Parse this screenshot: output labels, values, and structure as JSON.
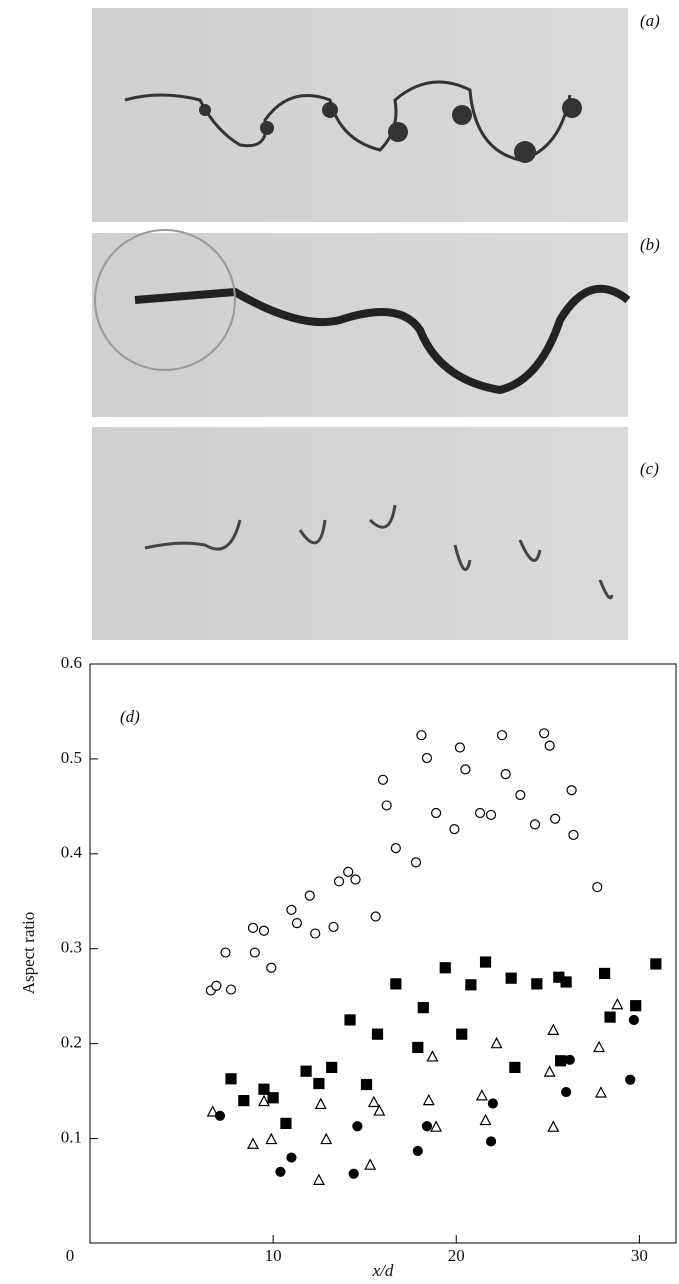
{
  "panels": [
    {
      "label": "(a)"
    },
    {
      "label": "(b)"
    },
    {
      "label": "(c)"
    }
  ],
  "chart_data": {
    "type": "scatter",
    "annotation": "(d)",
    "xlabel": "x/d",
    "ylabel": "Aspect ratio",
    "xlim": [
      0,
      32
    ],
    "ylim": [
      -0.01,
      0.6
    ],
    "xticks": [
      0,
      10,
      20,
      30
    ],
    "yticks": [
      0.1,
      0.2,
      0.3,
      0.4,
      0.5,
      0.6
    ],
    "series": [
      {
        "marker": "circle",
        "filled": false,
        "color": "#000000",
        "x": [
          6.6,
          6.9,
          7.4,
          7.7,
          8.9,
          9.0,
          9.5,
          9.9,
          11.0,
          11.3,
          12.0,
          12.3,
          13.3,
          13.6,
          14.1,
          14.5,
          15.6,
          16.0,
          16.2,
          16.7,
          17.8,
          18.1,
          18.4,
          18.9,
          19.9,
          20.2,
          20.5,
          21.3,
          21.9,
          22.5,
          22.7,
          23.5,
          24.3,
          24.8,
          25.1,
          25.4,
          26.3,
          26.4,
          27.7
        ],
        "values": [
          0.256,
          0.261,
          0.296,
          0.257,
          0.322,
          0.296,
          0.319,
          0.28,
          0.341,
          0.327,
          0.356,
          0.316,
          0.323,
          0.371,
          0.381,
          0.373,
          0.334,
          0.478,
          0.451,
          0.406,
          0.391,
          0.525,
          0.501,
          0.443,
          0.426,
          0.512,
          0.489,
          0.443,
          0.441,
          0.525,
          0.484,
          0.462,
          0.431,
          0.527,
          0.514,
          0.437,
          0.467,
          0.42,
          0.365
        ]
      },
      {
        "marker": "square",
        "filled": true,
        "color": "#000000",
        "x": [
          7.7,
          8.4,
          9.5,
          10.0,
          10.7,
          11.8,
          12.5,
          13.2,
          14.2,
          15.1,
          15.7,
          16.7,
          17.9,
          18.2,
          19.4,
          20.3,
          20.8,
          21.6,
          23.0,
          23.2,
          24.4,
          25.6,
          25.7,
          26.0,
          28.1,
          28.4,
          29.8,
          30.9
        ],
        "values": [
          0.163,
          0.14,
          0.152,
          0.143,
          0.116,
          0.171,
          0.158,
          0.175,
          0.225,
          0.157,
          0.21,
          0.263,
          0.196,
          0.238,
          0.28,
          0.21,
          0.262,
          0.286,
          0.269,
          0.175,
          0.263,
          0.27,
          0.182,
          0.265,
          0.274,
          0.228,
          0.24,
          0.284
        ]
      },
      {
        "marker": "triangle",
        "filled": false,
        "color": "#000000",
        "x": [
          6.7,
          8.9,
          9.5,
          9.9,
          12.6,
          12.9,
          12.5,
          15.3,
          15.5,
          15.8,
          18.5,
          18.7,
          18.9,
          21.4,
          21.6,
          22.2,
          25.1,
          25.3,
          25.3,
          27.8,
          27.9,
          28.8
        ],
        "values": [
          0.128,
          0.094,
          0.139,
          0.099,
          0.136,
          0.099,
          0.056,
          0.072,
          0.138,
          0.129,
          0.14,
          0.186,
          0.112,
          0.145,
          0.119,
          0.2,
          0.17,
          0.214,
          0.112,
          0.196,
          0.148,
          0.241
        ]
      },
      {
        "marker": "circle",
        "filled": true,
        "color": "#000000",
        "x": [
          7.1,
          10.4,
          11.0,
          14.4,
          14.6,
          17.9,
          18.4,
          21.9,
          22.0,
          26.0,
          26.2,
          29.5,
          29.7
        ],
        "values": [
          0.124,
          0.065,
          0.08,
          0.063,
          0.113,
          0.087,
          0.113,
          0.097,
          0.137,
          0.149,
          0.183,
          0.162,
          0.225
        ]
      }
    ]
  }
}
